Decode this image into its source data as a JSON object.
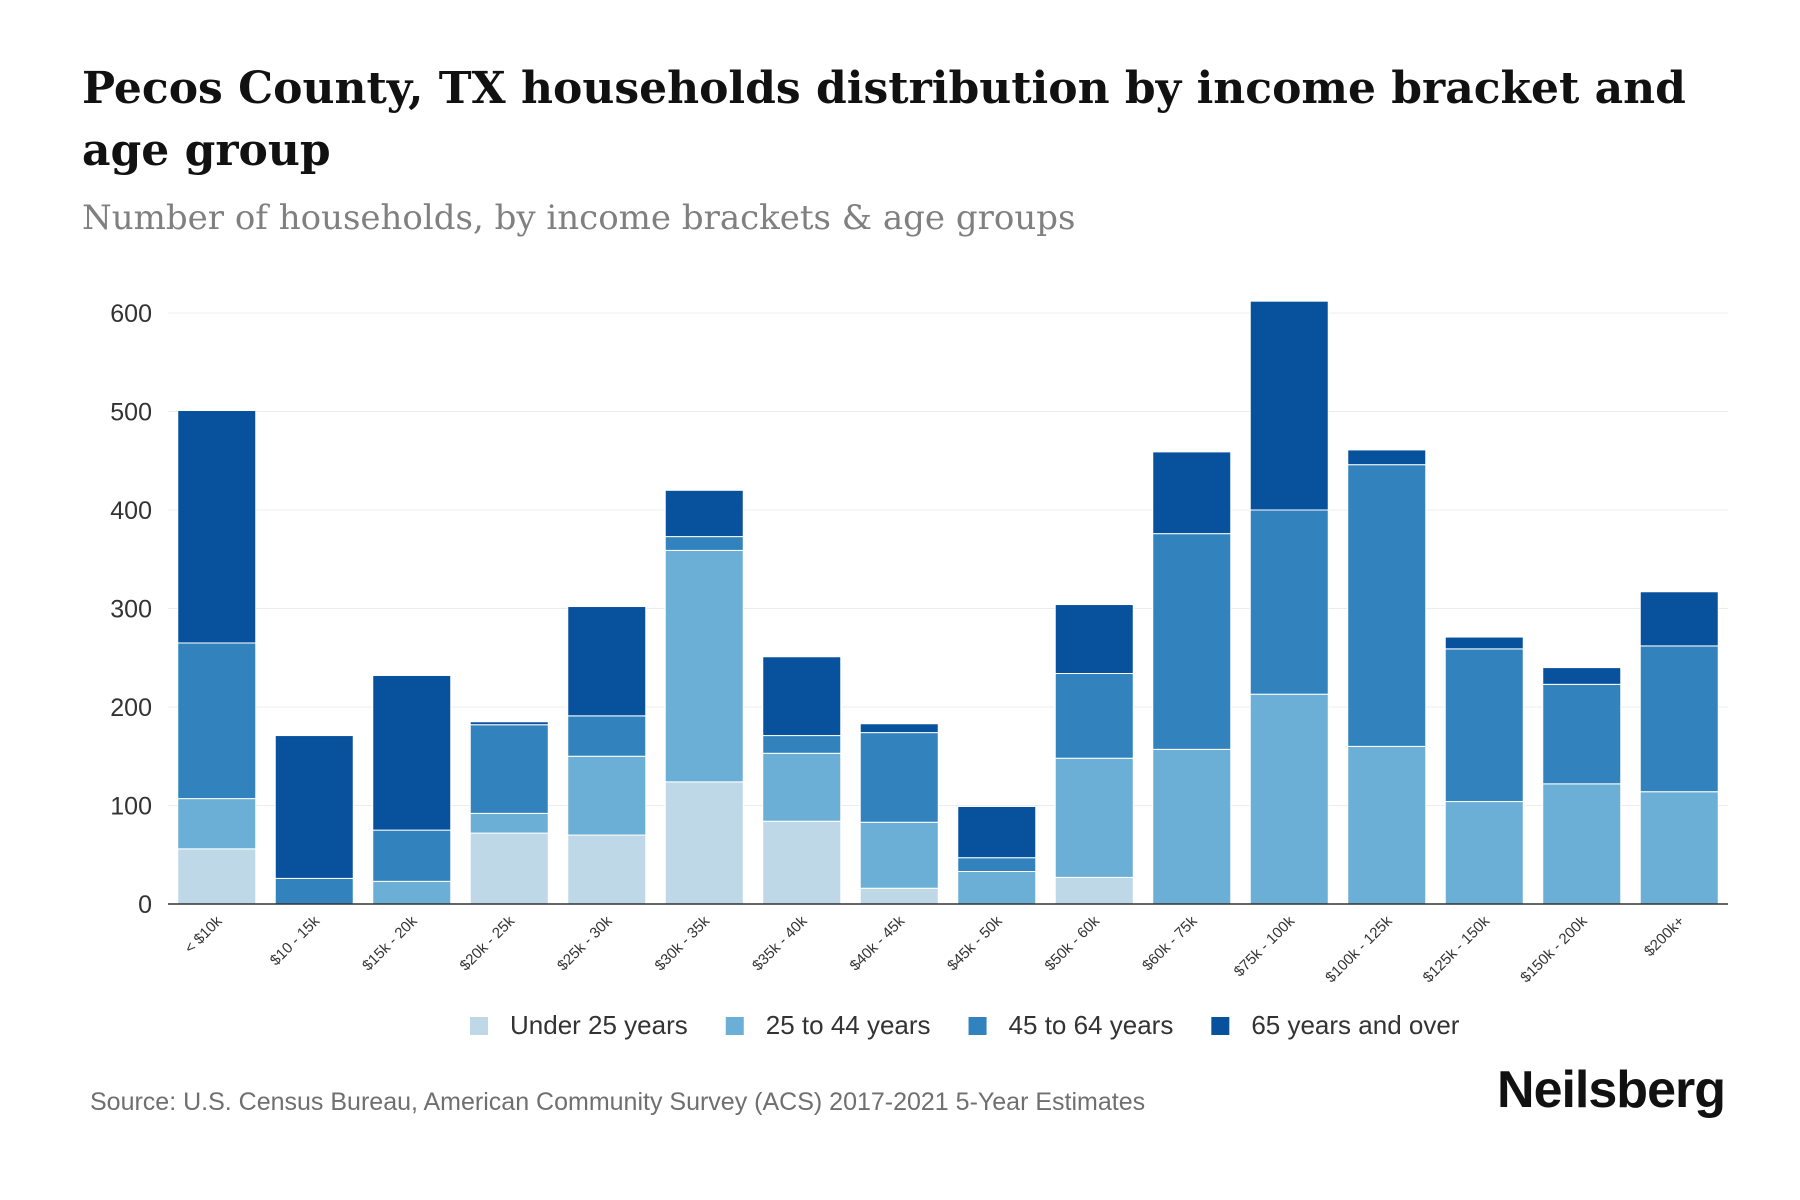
{
  "header": {
    "title": "Pecos County, TX households distribution by income bracket and age group",
    "subtitle": "Number of households, by income brackets & age groups"
  },
  "footer": {
    "source": "Source: U.S. Census Bureau, American Community Survey (ACS) 2017-2021 5-Year Estimates",
    "brand": "Neilsberg"
  },
  "chart_data": {
    "type": "bar",
    "stacked": true,
    "title": "Pecos County, TX households distribution by income bracket and age group",
    "subtitle": "Number of households, by income brackets & age groups",
    "xlabel": "",
    "ylabel": "",
    "ylim": [
      0,
      600
    ],
    "yticks": [
      0,
      100,
      200,
      300,
      400,
      500,
      600
    ],
    "grid": true,
    "legend_position": "bottom",
    "categories": [
      "< $10k",
      "$10 - 15k",
      "$15k - 20k",
      "$20k - 25k",
      "$25k - 30k",
      "$30k - 35k",
      "$35k - 40k",
      "$40k - 45k",
      "$45k - 50k",
      "$50k - 60k",
      "$60k - 75k",
      "$75k - 100k",
      "$100k - 125k",
      "$125k - 150k",
      "$150k - 200k",
      "$200k+"
    ],
    "series": [
      {
        "name": "Under 25 years",
        "color": "#bed8e8",
        "values": [
          56,
          0,
          0,
          72,
          70,
          124,
          84,
          16,
          0,
          27,
          0,
          0,
          0,
          0,
          0,
          0
        ]
      },
      {
        "name": "25 to 44 years",
        "color": "#6baed6",
        "values": [
          51,
          0,
          23,
          20,
          80,
          235,
          69,
          67,
          33,
          121,
          157,
          213,
          160,
          104,
          122,
          114
        ]
      },
      {
        "name": "45 to 64 years",
        "color": "#3182bd",
        "values": [
          158,
          26,
          52,
          90,
          41,
          14,
          18,
          91,
          14,
          86,
          219,
          187,
          286,
          155,
          101,
          148
        ]
      },
      {
        "name": "65 years and over",
        "color": "#08519c",
        "values": [
          236,
          145,
          157,
          3,
          111,
          47,
          80,
          9,
          52,
          70,
          83,
          212,
          15,
          12,
          17,
          55
        ]
      }
    ]
  }
}
